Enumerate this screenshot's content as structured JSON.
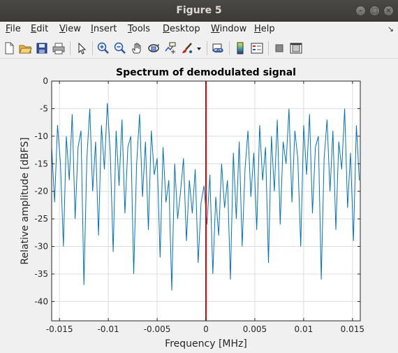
{
  "window": {
    "title": "Figure 5"
  },
  "menu": {
    "items": [
      {
        "key": "F",
        "rest": "ile"
      },
      {
        "key": "E",
        "rest": "dit"
      },
      {
        "key": "V",
        "rest": "iew"
      },
      {
        "key": "I",
        "rest": "nsert"
      },
      {
        "key": "T",
        "rest": "ools"
      },
      {
        "key": "D",
        "rest": "esktop"
      },
      {
        "key": "W",
        "rest": "indow"
      },
      {
        "key": "H",
        "rest": "elp"
      }
    ]
  },
  "toolbar": {
    "icons": [
      "new-figure-icon",
      "open-file-icon",
      "save-icon",
      "print-icon",
      "pointer-icon",
      "zoom-in-icon",
      "zoom-out-icon",
      "pan-icon",
      "rotate-3d-icon",
      "data-cursor-icon",
      "brush-icon",
      "dropdown-arrow-icon",
      "link-plot-icon",
      "colorbar-icon",
      "legend-icon",
      "hide-plot-tools-icon",
      "show-plot-tools-icon"
    ]
  },
  "chart_data": {
    "type": "line",
    "title": "Spectrum of demodulated signal",
    "xlabel": "Frequency [MHz]",
    "ylabel": "Relative amplitude [dBFS]",
    "xlim": [
      -0.0158,
      0.0158
    ],
    "ylim": [
      -43.5,
      0
    ],
    "xticks": [
      -0.015,
      -0.01,
      -0.005,
      0,
      0.005,
      0.01,
      0.015
    ],
    "xtick_labels": [
      "-0.015",
      "-0.01",
      "-0.005",
      "0",
      "0.005",
      "0.01",
      "0.015"
    ],
    "yticks": [
      0,
      -5,
      -10,
      -15,
      -20,
      -25,
      -30,
      -35,
      -40
    ],
    "ytick_labels": [
      "0",
      "-5",
      "-10",
      "-15",
      "-20",
      "-25",
      "-30",
      "-35",
      "-40"
    ],
    "grid": true,
    "series": [
      {
        "color": "#0072BD",
        "x": [
          -0.0158,
          -0.0155,
          -0.0152,
          -0.0149,
          -0.0146,
          -0.0143,
          -0.014,
          -0.0137,
          -0.0134,
          -0.0131,
          -0.0128,
          -0.0125,
          -0.0122,
          -0.0119,
          -0.0116,
          -0.0113,
          -0.011,
          -0.0107,
          -0.0104,
          -0.0101,
          -0.0098,
          -0.0095,
          -0.0092,
          -0.0089,
          -0.0086,
          -0.0083,
          -0.008,
          -0.0077,
          -0.0074,
          -0.0071,
          -0.0068,
          -0.0065,
          -0.0062,
          -0.0059,
          -0.0056,
          -0.0053,
          -0.005,
          -0.0047,
          -0.0044,
          -0.0041,
          -0.0038,
          -0.0035,
          -0.0032,
          -0.0029,
          -0.0026,
          -0.0023,
          -0.002,
          -0.0017,
          -0.0014,
          -0.0011,
          -0.0008,
          -0.0005,
          -0.0002,
          0.0001,
          0.0004,
          0.0007,
          0.001,
          0.0013,
          0.0016,
          0.0019,
          0.0022,
          0.0025,
          0.0028,
          0.0031,
          0.0034,
          0.0037,
          0.004,
          0.0043,
          0.0046,
          0.0049,
          0.0052,
          0.0055,
          0.0058,
          0.0061,
          0.0064,
          0.0067,
          0.007,
          0.0073,
          0.0076,
          0.0079,
          0.0082,
          0.0085,
          0.0088,
          0.0091,
          0.0094,
          0.0097,
          0.01,
          0.0103,
          0.0106,
          0.0109,
          0.0112,
          0.0115,
          0.0118,
          0.0121,
          0.0124,
          0.0127,
          0.013,
          0.0133,
          0.0136,
          0.0139,
          0.0142,
          0.0145,
          0.0148,
          0.0151,
          0.0154,
          0.0157
        ],
        "y": [
          -12,
          -22,
          -8,
          -15,
          -30,
          -10,
          -18,
          -6,
          -25,
          -12,
          -9,
          -37,
          -14,
          -5,
          -20,
          -11,
          -28,
          -8,
          -16,
          -4,
          -13,
          -31,
          -9,
          -19,
          -7,
          -24,
          -12,
          -10,
          -35,
          -15,
          -6,
          -21,
          -11,
          -27,
          -9,
          -17,
          -14,
          -32,
          -12,
          -22,
          -18,
          -38,
          -15,
          -25,
          -20,
          -14,
          -29,
          -18,
          -24,
          -16,
          -33,
          -22,
          -19,
          -26,
          -17,
          -35,
          -21,
          -28,
          -15,
          -23,
          -18,
          -36,
          -13,
          -25,
          -11,
          -30,
          -16,
          -9,
          -21,
          -13,
          -27,
          -8,
          -18,
          -12,
          -33,
          -10,
          -20,
          -7,
          -26,
          -11,
          -15,
          -5,
          -22,
          -9,
          -14,
          -30,
          -8,
          -17,
          -6,
          -24,
          -12,
          -10,
          -36,
          -14,
          -7,
          -20,
          -9,
          -27,
          -11,
          -16,
          -5,
          -23,
          -13,
          -29,
          -8,
          -18
        ]
      }
    ],
    "marker_line": {
      "x": 0,
      "color": "#E00000"
    }
  }
}
